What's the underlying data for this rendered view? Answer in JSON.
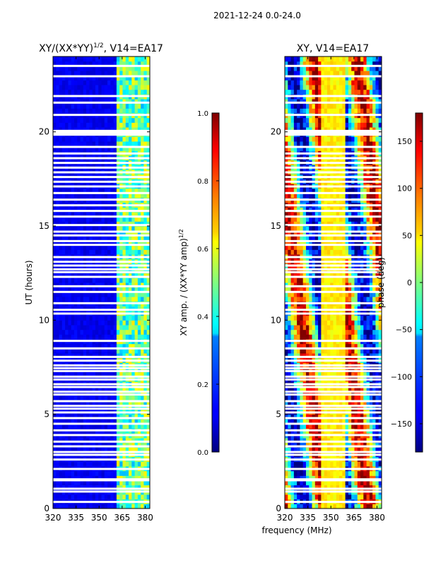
{
  "figure_title": "2021-12-24 0.0-24.0",
  "shared_xlabel": "frequency (MHz)",
  "chart_data": [
    {
      "type": "heatmap",
      "title_main": "XY/(XX*YY)",
      "title_sup": "1/2",
      "title_rest": ", V14=EA17",
      "xlabel": "",
      "ylabel": "UT (hours)",
      "xlim": [
        320,
        383
      ],
      "ylim": [
        0,
        24
      ],
      "xticks": [
        320,
        335,
        350,
        365,
        380
      ],
      "xtick_labels": [
        "320",
        "335",
        "350",
        "365",
        "380"
      ],
      "yticks": [
        0,
        5,
        10,
        15,
        20
      ],
      "ytick_labels": [
        "0",
        "5",
        "10",
        "15",
        "20"
      ],
      "colormap": "jet",
      "colorbar": {
        "label": "XY amp. / (XX*YY amp)",
        "label_sup": "1/2",
        "range": [
          0,
          1
        ],
        "ticks": [
          0.0,
          0.2,
          0.4,
          0.6,
          0.8,
          1.0
        ],
        "tick_labels": [
          "0.0",
          "0.2",
          "0.4",
          "0.6",
          "0.8",
          "1.0"
        ]
      },
      "description_bands": [
        {
          "freq_range": [
            320,
            360
          ],
          "value": 0.1
        },
        {
          "freq_range": [
            360,
            383
          ],
          "value": 0.45
        }
      ]
    },
    {
      "type": "heatmap",
      "title": "XY, V14=EA17",
      "xlabel": "frequency (MHz)",
      "ylabel": "",
      "xlim": [
        320,
        383
      ],
      "ylim": [
        0,
        24
      ],
      "xticks": [
        320,
        335,
        350,
        365,
        380
      ],
      "xtick_labels": [
        "320",
        "335",
        "350",
        "365",
        "380"
      ],
      "yticks": [
        0,
        5,
        10,
        15,
        20
      ],
      "ytick_labels": [
        "0",
        "5",
        "10",
        "15",
        "20"
      ],
      "colormap": "jet",
      "colorbar": {
        "label": "phase (deg)",
        "range": [
          -180,
          180
        ],
        "ticks": [
          -150,
          -100,
          -50,
          0,
          50,
          100,
          150
        ],
        "tick_labels": [
          "−150",
          "−100",
          "−50",
          "0",
          "50",
          "100",
          "150"
        ]
      }
    }
  ],
  "flagged_times_hours": [
    0.35,
    0.9,
    1.05,
    1.5,
    1.55,
    2.1,
    2.6,
    2.85,
    3.0,
    3.3,
    3.55,
    3.9,
    4.15,
    4.5,
    4.8,
    5.1,
    5.3,
    5.45,
    5.7,
    6.05,
    6.2,
    6.45,
    6.6,
    6.85,
    7.0,
    7.3,
    7.45,
    7.6,
    7.85,
    8.05,
    8.5,
    8.9,
    10.35,
    10.55,
    10.9,
    11.5,
    11.8,
    12.3,
    12.55,
    12.7,
    12.9,
    13.1,
    13.35,
    14.0,
    14.2,
    14.5,
    14.7,
    15.05,
    15.5,
    15.8,
    16.1,
    16.4,
    16.75,
    17.1,
    17.35,
    17.6,
    17.85,
    18.1,
    18.35,
    18.6,
    18.85,
    19.2,
    19.85,
    19.95,
    20.05,
    20.9,
    21.55,
    21.9,
    22.95,
    23.5
  ]
}
